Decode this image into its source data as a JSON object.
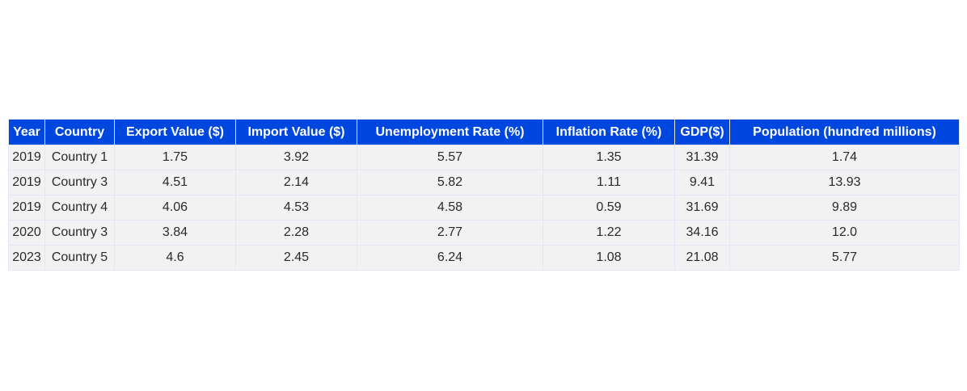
{
  "chart_data": {
    "type": "table",
    "columns": [
      "Year",
      "Country",
      "Export Value ($)",
      "Import Value ($)",
      "Unemployment Rate (%)",
      "Inflation Rate (%)",
      "GDP($)",
      "Population (hundred millions)"
    ],
    "rows": [
      [
        "2019",
        "Country 1",
        "1.75",
        "3.92",
        "5.57",
        "1.35",
        "31.39",
        "1.74"
      ],
      [
        "2019",
        "Country 3",
        "4.51",
        "2.14",
        "5.82",
        "1.11",
        "9.41",
        "13.93"
      ],
      [
        "2019",
        "Country 4",
        "4.06",
        "4.53",
        "4.58",
        "0.59",
        "31.69",
        "9.89"
      ],
      [
        "2020",
        "Country 3",
        "3.84",
        "2.28",
        "2.77",
        "1.22",
        "34.16",
        "12.0"
      ],
      [
        "2023",
        "Country 5",
        "4.6",
        "2.45",
        "6.24",
        "1.08",
        "21.08",
        "5.77"
      ]
    ],
    "header_color": "#0047e0",
    "header_text_color": "#ffffff",
    "cell_color": "#f2f2f2",
    "grid_color": "#e3e6f3"
  }
}
